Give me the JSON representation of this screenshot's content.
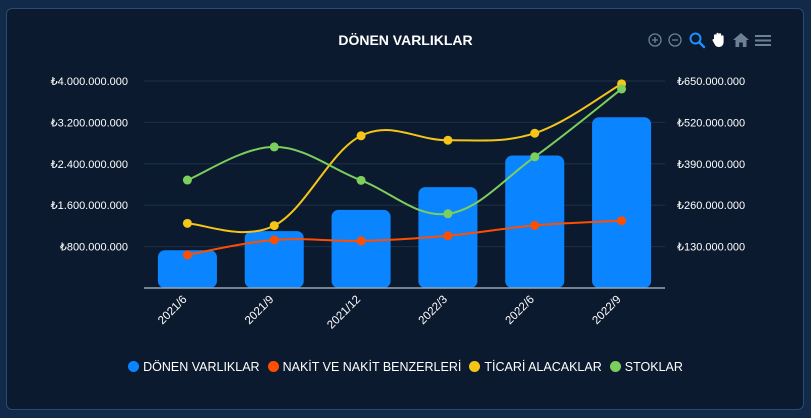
{
  "chart_data": {
    "type": "bar",
    "title": "DÖNEN VARLIKLAR",
    "categories": [
      "2021/6",
      "2021/9",
      "2021/12",
      "2022/3",
      "2022/6",
      "2022/9"
    ],
    "left_axis": {
      "ticks": [
        800000000,
        1600000000,
        2400000000,
        3200000000,
        4000000000
      ],
      "tick_labels": [
        "₺800.000.000",
        "₺1.600.000.000",
        "₺2.400.000.000",
        "₺3.200.000.000",
        "₺4.000.000.000"
      ],
      "ylim": [
        0,
        4000000000
      ]
    },
    "right_axis": {
      "ticks": [
        130000000,
        260000000,
        390000000,
        520000000,
        650000000
      ],
      "tick_labels": [
        "₺130.000.000",
        "₺260.000.000",
        "₺390.000.000",
        "₺520.000.000",
        "₺650.000.000"
      ],
      "ylim": [
        0,
        650000000
      ]
    },
    "grid": true,
    "legend_position": "bottom",
    "series": [
      {
        "name": "DÖNEN VARLIKLAR",
        "type": "bar",
        "axis": "left",
        "color": "#0a84ff",
        "values": [
          730000000,
          1100000000,
          1510000000,
          1950000000,
          2560000000,
          3300000000
        ]
      },
      {
        "name": "NAKİT VE NAKİT BENZERLERİ",
        "type": "spline",
        "axis": "left",
        "color": "#ff4e00",
        "values": [
          640000000,
          930000000,
          910000000,
          1010000000,
          1210000000,
          1300000000
        ]
      },
      {
        "name": "TİCARİ ALACAKLAR",
        "type": "spline",
        "axis": "right",
        "color": "#f5c518",
        "values": [
          203000000,
          196000000,
          478000000,
          464000000,
          486000000,
          641000000
        ]
      },
      {
        "name": "STOKLAR",
        "type": "spline",
        "axis": "right",
        "color": "#7ccf5c",
        "values": [
          339000000,
          443000000,
          338000000,
          233000000,
          412000000,
          625000000
        ]
      }
    ]
  },
  "toolbar": {
    "icons": [
      "zoom-in-icon",
      "zoom-out-icon",
      "selection-zoom-icon",
      "pan-icon",
      "reset-home-icon",
      "menu-icon"
    ]
  }
}
